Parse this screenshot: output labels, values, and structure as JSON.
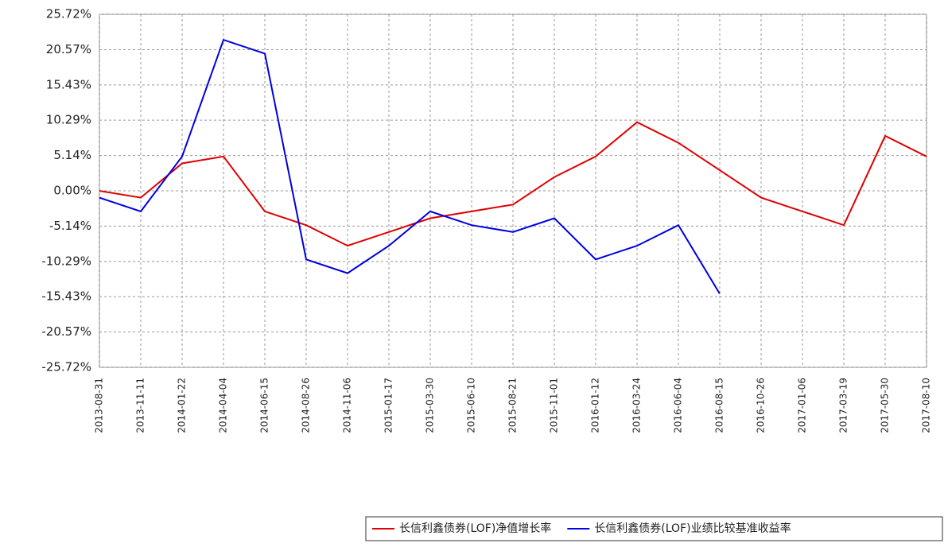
{
  "chart_data": {
    "type": "line",
    "categories": [
      "2013-08-31",
      "2013-11-11",
      "2014-01-22",
      "2014-04-04",
      "2014-06-15",
      "2014-08-26",
      "2014-11-06",
      "2015-01-17",
      "2015-03-30",
      "2015-06-10",
      "2015-08-21",
      "2015-11-01",
      "2016-01-12",
      "2016-03-24",
      "2016-06-04",
      "2016-08-15",
      "2016-10-26",
      "2017-01-06",
      "2017-03-19",
      "2017-05-30",
      "2017-08-10"
    ],
    "series": [
      {
        "name": "长信利鑫债券(LOF)净值增长率",
        "color": "#e00000",
        "values": [
          0,
          -1,
          4,
          5,
          -3,
          -5,
          -8,
          -6,
          -4,
          -3,
          -2,
          2,
          5,
          10,
          7,
          3,
          -1,
          -3,
          -5,
          8,
          5
        ]
      },
      {
        "name": "长信利鑫债券(LOF)业绩比较基准收益率",
        "color": "#0000e0",
        "values": [
          -1,
          -3,
          5,
          22,
          20,
          -10,
          -12,
          -8,
          -3,
          -5,
          -6,
          -4,
          -10,
          -8,
          -5,
          -15,
          null,
          null,
          null,
          null,
          null
        ]
      }
    ],
    "ylim": [
      -25.72,
      25.72
    ],
    "yticks": [
      {
        "value": -25.72,
        "label": "-25.72%"
      },
      {
        "value": -20.57,
        "label": "-20.57%"
      },
      {
        "value": -15.43,
        "label": "-15.43%"
      },
      {
        "value": -10.29,
        "label": "-10.29%"
      },
      {
        "value": -5.14,
        "label": "-5.14%"
      },
      {
        "value": 0,
        "label": "0.00%"
      },
      {
        "value": 5.14,
        "label": "5.14%"
      },
      {
        "value": 10.29,
        "label": "10.29%"
      },
      {
        "value": 15.43,
        "label": "15.43%"
      },
      {
        "value": 20.57,
        "label": "20.57%"
      },
      {
        "value": 25.72,
        "label": "25.72%"
      }
    ],
    "grid": true
  }
}
